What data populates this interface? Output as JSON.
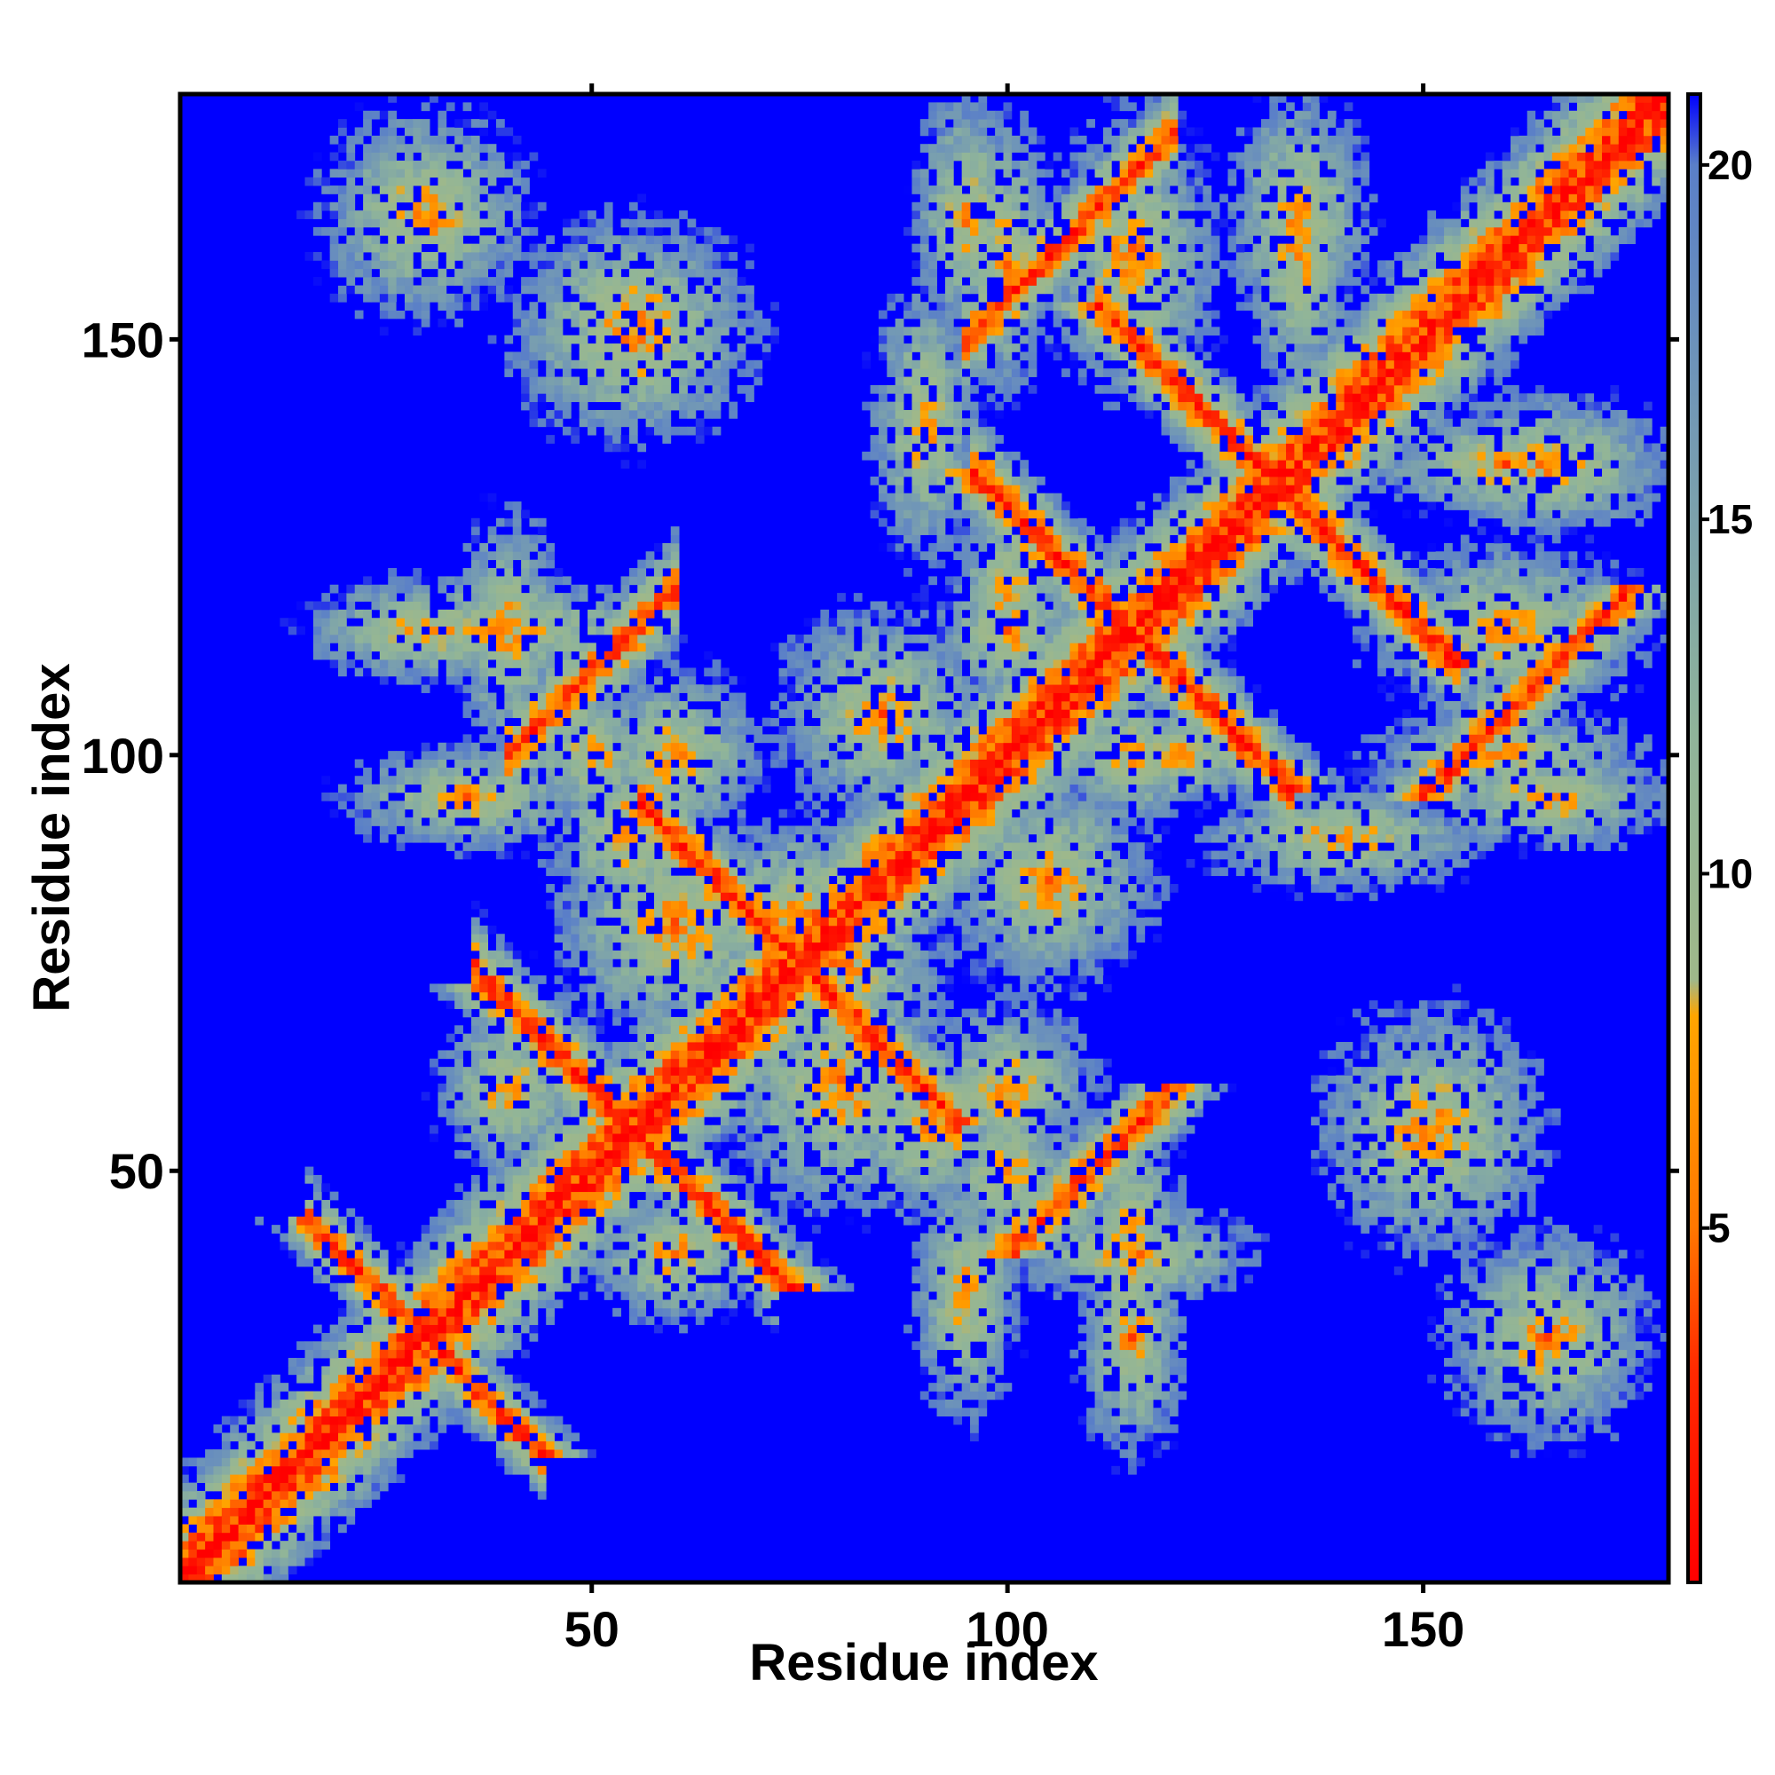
{
  "chart_data": {
    "type": "heatmap",
    "title": "",
    "xlabel": "Residue index",
    "ylabel": "Residue index",
    "x_ticks": [
      50,
      100,
      150
    ],
    "y_ticks": [
      50,
      100,
      150
    ],
    "xlim": [
      1,
      179
    ],
    "ylim": [
      1,
      179
    ],
    "residue_count": 179,
    "colorbar": {
      "min": 0,
      "max": 21,
      "ticks": [
        5,
        10,
        15,
        20
      ],
      "colors": [
        {
          "value": 0,
          "color": "#ff0000"
        },
        {
          "value": 3,
          "color": "#ff2a00"
        },
        {
          "value": 5,
          "color": "#ff7700"
        },
        {
          "value": 8,
          "color": "#ffa500"
        },
        {
          "value": 8.5,
          "color": "#9fb88a"
        },
        {
          "value": 12,
          "color": "#8fb49a"
        },
        {
          "value": 17,
          "color": "#6f95b8"
        },
        {
          "value": 20,
          "color": "#5a7fc8"
        },
        {
          "value": 21,
          "color": "#0000ff"
        }
      ]
    },
    "background_color": "#0000ff",
    "contact_bands": [
      {
        "type": "diagonal",
        "width": 2.5
      },
      {
        "type": "antiparallel",
        "sum": 60,
        "from": 20,
        "to": 40,
        "width": 2.5
      },
      {
        "type": "antiparallel",
        "sum": 150,
        "from": 60,
        "to": 90,
        "width": 3
      },
      {
        "type": "antiparallel",
        "sum": 230,
        "from": 100,
        "to": 130,
        "width": 3
      },
      {
        "type": "parallel",
        "offset": 60,
        "from": 40,
        "to": 60,
        "width": 3
      },
      {
        "type": "parallel",
        "offset": 55,
        "from": 95,
        "to": 120,
        "width": 3
      },
      {
        "type": "antiparallel",
        "sum": 110,
        "from": 40,
        "to": 68,
        "width": 3
      },
      {
        "type": "antiparallel",
        "sum": 265,
        "from": 115,
        "to": 150,
        "width": 3
      },
      {
        "type": "blob",
        "x": 40,
        "y": 115,
        "rx": 18,
        "ry": 6
      },
      {
        "type": "blob",
        "x": 35,
        "y": 95,
        "rx": 14,
        "ry": 6
      },
      {
        "type": "blob",
        "x": 55,
        "y": 152,
        "rx": 14,
        "ry": 12
      },
      {
        "type": "blob",
        "x": 30,
        "y": 165,
        "rx": 12,
        "ry": 12
      },
      {
        "type": "blob",
        "x": 95,
        "y": 35,
        "rx": 6,
        "ry": 14
      },
      {
        "type": "blob",
        "x": 115,
        "y": 30,
        "rx": 6,
        "ry": 14
      },
      {
        "type": "blob",
        "x": 115,
        "y": 40,
        "rx": 14,
        "ry": 6
      },
      {
        "type": "blob",
        "x": 150,
        "y": 55,
        "rx": 12,
        "ry": 14
      },
      {
        "type": "blob",
        "x": 165,
        "y": 30,
        "rx": 12,
        "ry": 12
      },
      {
        "type": "blob",
        "x": 95,
        "y": 165,
        "rx": 6,
        "ry": 14
      },
      {
        "type": "blob",
        "x": 115,
        "y": 160,
        "rx": 10,
        "ry": 16
      },
      {
        "type": "blob",
        "x": 135,
        "y": 165,
        "rx": 8,
        "ry": 14
      },
      {
        "type": "blob",
        "x": 160,
        "y": 100,
        "rx": 16,
        "ry": 5
      },
      {
        "type": "blob",
        "x": 160,
        "y": 115,
        "rx": 16,
        "ry": 6
      },
      {
        "type": "blob",
        "x": 160,
        "y": 135,
        "rx": 16,
        "ry": 6
      },
      {
        "type": "blob",
        "x": 75,
        "y": 80,
        "rx": 12,
        "ry": 12
      },
      {
        "type": "blob",
        "x": 80,
        "y": 60,
        "rx": 14,
        "ry": 14
      },
      {
        "type": "blob",
        "x": 105,
        "y": 85,
        "rx": 12,
        "ry": 12
      },
      {
        "type": "blob",
        "x": 60,
        "y": 100,
        "rx": 10,
        "ry": 10
      },
      {
        "type": "blob",
        "x": 60,
        "y": 40,
        "rx": 10,
        "ry": 8
      },
      {
        "type": "blob",
        "x": 90,
        "y": 55,
        "rx": 10,
        "ry": 10
      },
      {
        "type": "blob",
        "x": 100,
        "y": 50,
        "rx": 8,
        "ry": 8
      },
      {
        "type": "blob",
        "x": 100,
        "y": 115,
        "rx": 8,
        "ry": 8
      },
      {
        "type": "blob",
        "x": 90,
        "y": 140,
        "rx": 6,
        "ry": 16
      },
      {
        "type": "blob",
        "x": 120,
        "y": 100,
        "rx": 10,
        "ry": 6
      }
    ]
  }
}
